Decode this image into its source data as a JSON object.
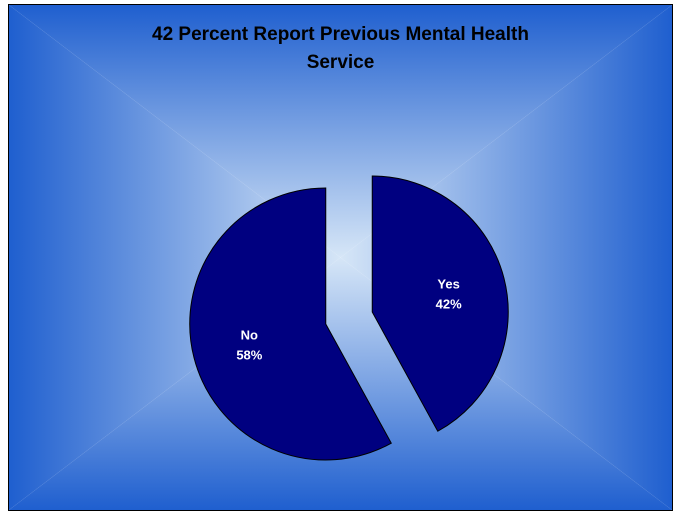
{
  "chart_data": {
    "type": "pie",
    "title": "42 Percent Report Previous Mental Health Service",
    "slices": [
      {
        "label": "Yes",
        "value": 42,
        "pct_label": "42%",
        "exploded": true
      },
      {
        "label": "No",
        "value": 58,
        "pct_label": "58%",
        "exploded": true
      }
    ],
    "colors": {
      "slice_fill": "#000080",
      "slice_stroke": "#000000",
      "label_color": "#ffffff",
      "bg_center": "#d6e6f7",
      "bg_edge": "#1f5fcf"
    },
    "legend": "none"
  }
}
